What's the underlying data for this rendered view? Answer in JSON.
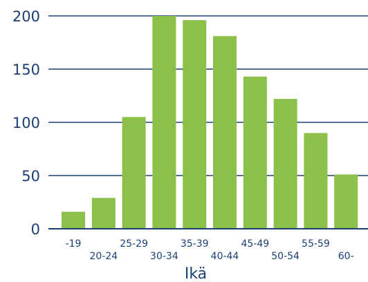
{
  "chart_data": {
    "type": "bar",
    "categories": [
      "-19",
      "20-24",
      "25-29",
      "30-34",
      "35-39",
      "40-44",
      "45-49",
      "50-54",
      "55-59",
      "60-"
    ],
    "values": [
      16,
      29,
      105,
      200,
      196,
      181,
      143,
      122,
      90,
      51
    ],
    "title": "",
    "xlabel": "Ikä",
    "ylabel": "",
    "ylim": [
      0,
      200
    ],
    "yticks": [
      0,
      50,
      100,
      150,
      200
    ],
    "grid": true,
    "legend": "none",
    "colors": {
      "bar": "#8cc04a",
      "grid": "#1b3e74",
      "text": "#1b3e74"
    }
  }
}
